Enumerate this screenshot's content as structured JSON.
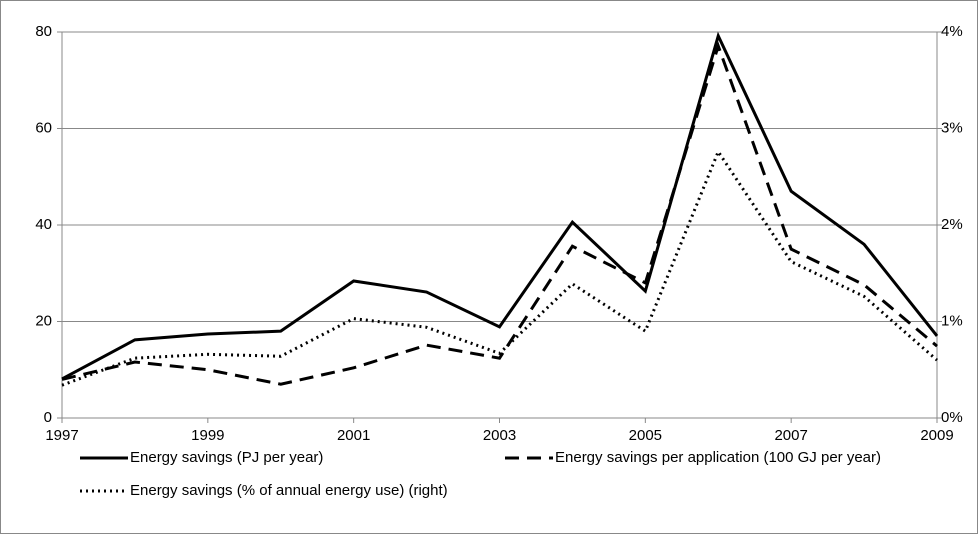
{
  "chart_data": {
    "type": "line",
    "x": [
      1997,
      1998,
      1999,
      2000,
      2001,
      2002,
      2003,
      2004,
      2005,
      2006,
      2007,
      2008,
      2009
    ],
    "xlim": [
      1997,
      2009
    ],
    "xticks": [
      1997,
      1999,
      2001,
      2003,
      2005,
      2007,
      2009
    ],
    "ylim": [
      0,
      80
    ],
    "yticks": [
      0,
      20,
      40,
      60,
      80
    ],
    "y2lim": [
      0,
      4
    ],
    "y2ticks": [
      {
        "value": 0,
        "label": "0%"
      },
      {
        "value": 1,
        "label": "1%"
      },
      {
        "value": 2,
        "label": "2%"
      },
      {
        "value": 3,
        "label": "3%"
      },
      {
        "value": 4,
        "label": "4%"
      }
    ],
    "grid": true,
    "legend": "bottom",
    "series": [
      {
        "name": "Energy savings (PJ per year)",
        "color": "#000000",
        "style": "solid",
        "values": [
          8.1,
          16.2,
          17.4,
          18,
          28.4,
          26.1,
          18.9,
          40.6,
          26.3,
          79.2,
          47,
          36,
          17
        ]
      },
      {
        "name": "Energy savings per application (100 GJ per year)",
        "color": "#000000",
        "style": "dashed",
        "values": [
          8,
          11.6,
          10,
          7,
          10.4,
          15.1,
          12.4,
          35.6,
          28,
          77.1,
          35,
          27.6,
          14.9
        ]
      },
      {
        "name": "Energy savings (% of annual energy use) (right)",
        "color": "#000000",
        "style": "dotted",
        "axis": "y2",
        "values": [
          0.34,
          0.62,
          0.66,
          0.64,
          1.03,
          0.94,
          0.67,
          1.39,
          0.9,
          2.76,
          1.62,
          1.26,
          0.6
        ]
      }
    ]
  }
}
